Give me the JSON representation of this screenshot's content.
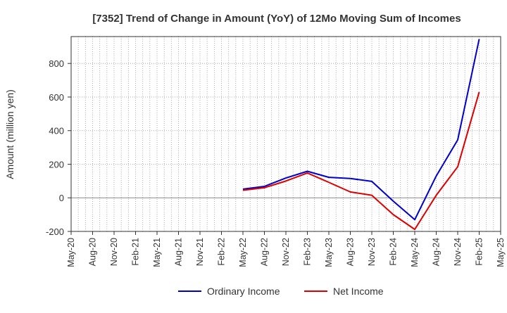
{
  "chart_data": {
    "type": "line",
    "title": "[7352]  Trend of Change in Amount (YoY) of 12Mo Moving Sum of Incomes",
    "xlabel": "",
    "ylabel": "Amount (million yen)",
    "ylim": [
      -200,
      960
    ],
    "yticks": [
      -200,
      0,
      200,
      400,
      600,
      800
    ],
    "x_tick_labels": [
      "May-20",
      "Aug-20",
      "Nov-20",
      "Feb-21",
      "May-21",
      "Aug-21",
      "Nov-21",
      "Feb-22",
      "May-22",
      "Aug-22",
      "Nov-22",
      "Feb-23",
      "May-23",
      "Aug-23",
      "Nov-23",
      "Feb-24",
      "May-24",
      "Aug-24",
      "Nov-24",
      "Feb-25",
      "May-25"
    ],
    "months_total": 61,
    "grid": true,
    "legend_position": "bottom",
    "series": [
      {
        "name": "Ordinary Income",
        "color": "#0000cc",
        "points": [
          {
            "x": "May-22",
            "y": 52
          },
          {
            "x": "Aug-22",
            "y": 68
          },
          {
            "x": "Nov-22",
            "y": 118
          },
          {
            "x": "Feb-23",
            "y": 158
          },
          {
            "x": "May-23",
            "y": 122
          },
          {
            "x": "Aug-23",
            "y": 115
          },
          {
            "x": "Nov-23",
            "y": 98
          },
          {
            "x": "Feb-24",
            "y": -20
          },
          {
            "x": "May-24",
            "y": -130
          },
          {
            "x": "Aug-24",
            "y": 130
          },
          {
            "x": "Nov-24",
            "y": 345
          },
          {
            "x": "Feb-25",
            "y": 945
          }
        ]
      },
      {
        "name": "Net Income",
        "color": "#dd0000",
        "points": [
          {
            "x": "May-22",
            "y": 45
          },
          {
            "x": "Aug-22",
            "y": 60
          },
          {
            "x": "Nov-22",
            "y": 100
          },
          {
            "x": "Feb-23",
            "y": 148
          },
          {
            "x": "May-23",
            "y": 92
          },
          {
            "x": "Aug-23",
            "y": 35
          },
          {
            "x": "Nov-23",
            "y": 15
          },
          {
            "x": "Feb-24",
            "y": -100
          },
          {
            "x": "May-24",
            "y": -188
          },
          {
            "x": "Aug-24",
            "y": 15
          },
          {
            "x": "Nov-24",
            "y": 185
          },
          {
            "x": "Feb-25",
            "y": 630
          }
        ]
      }
    ]
  }
}
